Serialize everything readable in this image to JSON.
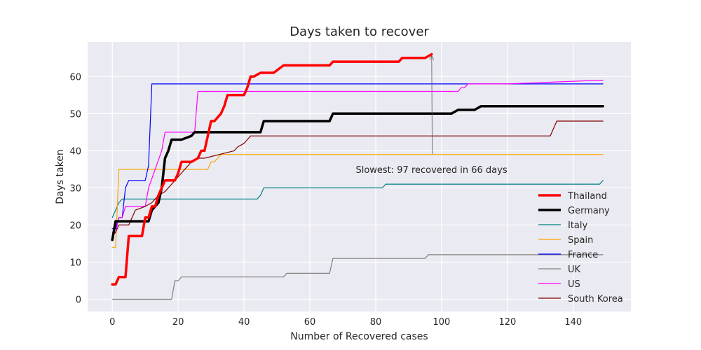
{
  "chart_data": {
    "type": "line",
    "title": "Days taken to recover",
    "xlabel": "Number of Recovered cases",
    "ylabel": "Days taken",
    "xlim": [
      -7.5,
      157.5
    ],
    "ylim": [
      -3.3,
      69.3
    ],
    "xticks": [
      0,
      20,
      40,
      60,
      80,
      100,
      120,
      140
    ],
    "yticks": [
      0,
      10,
      20,
      30,
      40,
      50,
      60
    ],
    "grid": true,
    "legend_position": "lower right",
    "annotation": {
      "text": "Slowest: 97 recovered in 66 days",
      "point": [
        97,
        66
      ],
      "text_anchor_point": [
        98,
        38
      ]
    },
    "series": [
      {
        "name": "Thailand",
        "color": "#ff0000",
        "width": 3.5,
        "x": [
          0,
          1,
          2,
          4,
          5,
          9,
          10,
          11,
          12,
          13,
          14,
          15,
          16,
          19,
          20,
          21,
          24,
          26,
          27,
          28,
          29,
          30,
          31,
          32,
          33,
          34,
          35,
          37,
          40,
          41,
          42,
          43,
          45,
          47,
          49,
          52,
          54,
          63,
          66,
          67,
          70,
          74,
          75,
          77,
          80,
          81,
          83,
          87,
          88,
          94,
          95,
          97
        ],
        "y": [
          4,
          4,
          6,
          6,
          17,
          17,
          22,
          22,
          25,
          25,
          28,
          30,
          32,
          32,
          34,
          37,
          37,
          38,
          40,
          40,
          44,
          48,
          48,
          49,
          50,
          52,
          55,
          55,
          55,
          57,
          60,
          60,
          61,
          61,
          61,
          63,
          63,
          63,
          63,
          64,
          64,
          64,
          64,
          64,
          64,
          64,
          64,
          64,
          65,
          65,
          65,
          66
        ]
      },
      {
        "name": "Germany",
        "color": "#000000",
        "width": 3.5,
        "x": [
          0,
          1,
          5,
          11,
          12,
          14,
          15,
          16,
          17,
          18,
          19,
          20,
          21,
          24,
          25,
          43,
          45,
          46,
          62,
          66,
          67,
          78,
          103,
          105,
          109,
          110,
          112,
          149
        ],
        "y": [
          16,
          21,
          21,
          21,
          24,
          26,
          30,
          38,
          40,
          43,
          43,
          43,
          43,
          44,
          45,
          45,
          45,
          48,
          48,
          48,
          50,
          50,
          50,
          51,
          51,
          51,
          52,
          52
        ]
      },
      {
        "name": "Italy",
        "color": "#008080",
        "width": 1.2,
        "x": [
          0,
          1,
          2,
          3,
          4,
          10,
          20,
          30,
          40,
          44,
          45,
          46,
          50,
          60,
          70,
          82,
          83,
          90,
          100,
          110,
          120,
          130,
          140,
          148,
          149
        ],
        "y": [
          22,
          24,
          26,
          27,
          27,
          27,
          27,
          27,
          27,
          27,
          28,
          30,
          30,
          30,
          30,
          30,
          31,
          31,
          31,
          31,
          31,
          31,
          31,
          31,
          32
        ]
      },
      {
        "name": "Spain",
        "color": "#ffa500",
        "width": 1.2,
        "x": [
          0,
          1,
          2,
          3,
          20,
          25,
          29,
          30,
          31,
          32,
          33,
          40,
          60,
          80,
          100,
          120,
          149
        ],
        "y": [
          14,
          14,
          35,
          35,
          35,
          35,
          35,
          37,
          37,
          38,
          39,
          39,
          39,
          39,
          39,
          39,
          39
        ]
      },
      {
        "name": "France",
        "color": "#0000ff",
        "width": 1.2,
        "x": [
          0,
          1,
          2,
          3,
          4,
          5,
          10,
          11,
          12,
          20,
          40,
          60,
          80,
          100,
          120,
          149
        ],
        "y": [
          19,
          19,
          22,
          22,
          30,
          32,
          32,
          36,
          58,
          58,
          58,
          58,
          58,
          58,
          58,
          58
        ]
      },
      {
        "name": "UK",
        "color": "#808080",
        "width": 1.2,
        "x": [
          0,
          18,
          19,
          20,
          21,
          30,
          52,
          53,
          66,
          67,
          95,
          96,
          148,
          149
        ],
        "y": [
          0,
          0,
          5,
          5,
          6,
          6,
          6,
          7,
          7,
          11,
          11,
          12,
          12,
          12
        ]
      },
      {
        "name": "US",
        "color": "#ff00ff",
        "width": 1.2,
        "x": [
          0,
          1,
          2,
          3,
          4,
          10,
          11,
          13,
          15,
          16,
          17,
          18,
          25,
          26,
          30,
          60,
          80,
          100,
          105,
          106,
          107,
          108,
          120,
          148,
          149
        ],
        "y": [
          18,
          18,
          22,
          22,
          25,
          25,
          30,
          35,
          40,
          45,
          45,
          45,
          45,
          56,
          56,
          56,
          56,
          56,
          56,
          57,
          57,
          58,
          58,
          59,
          59
        ]
      },
      {
        "name": "South Korea",
        "color": "#800000",
        "width": 1.2,
        "x": [
          0,
          1,
          2,
          5,
          6,
          7,
          10,
          12,
          14,
          16,
          20,
          22,
          24,
          26,
          28,
          37,
          38,
          40,
          41,
          42,
          60,
          80,
          100,
          120,
          133,
          134,
          135,
          149
        ],
        "y": [
          17,
          18,
          20,
          20,
          22,
          24,
          25,
          26,
          28,
          29,
          33,
          35,
          37,
          38,
          38,
          40,
          41,
          42,
          43,
          44,
          44,
          44,
          44,
          44,
          44,
          46,
          48,
          48
        ]
      }
    ]
  }
}
